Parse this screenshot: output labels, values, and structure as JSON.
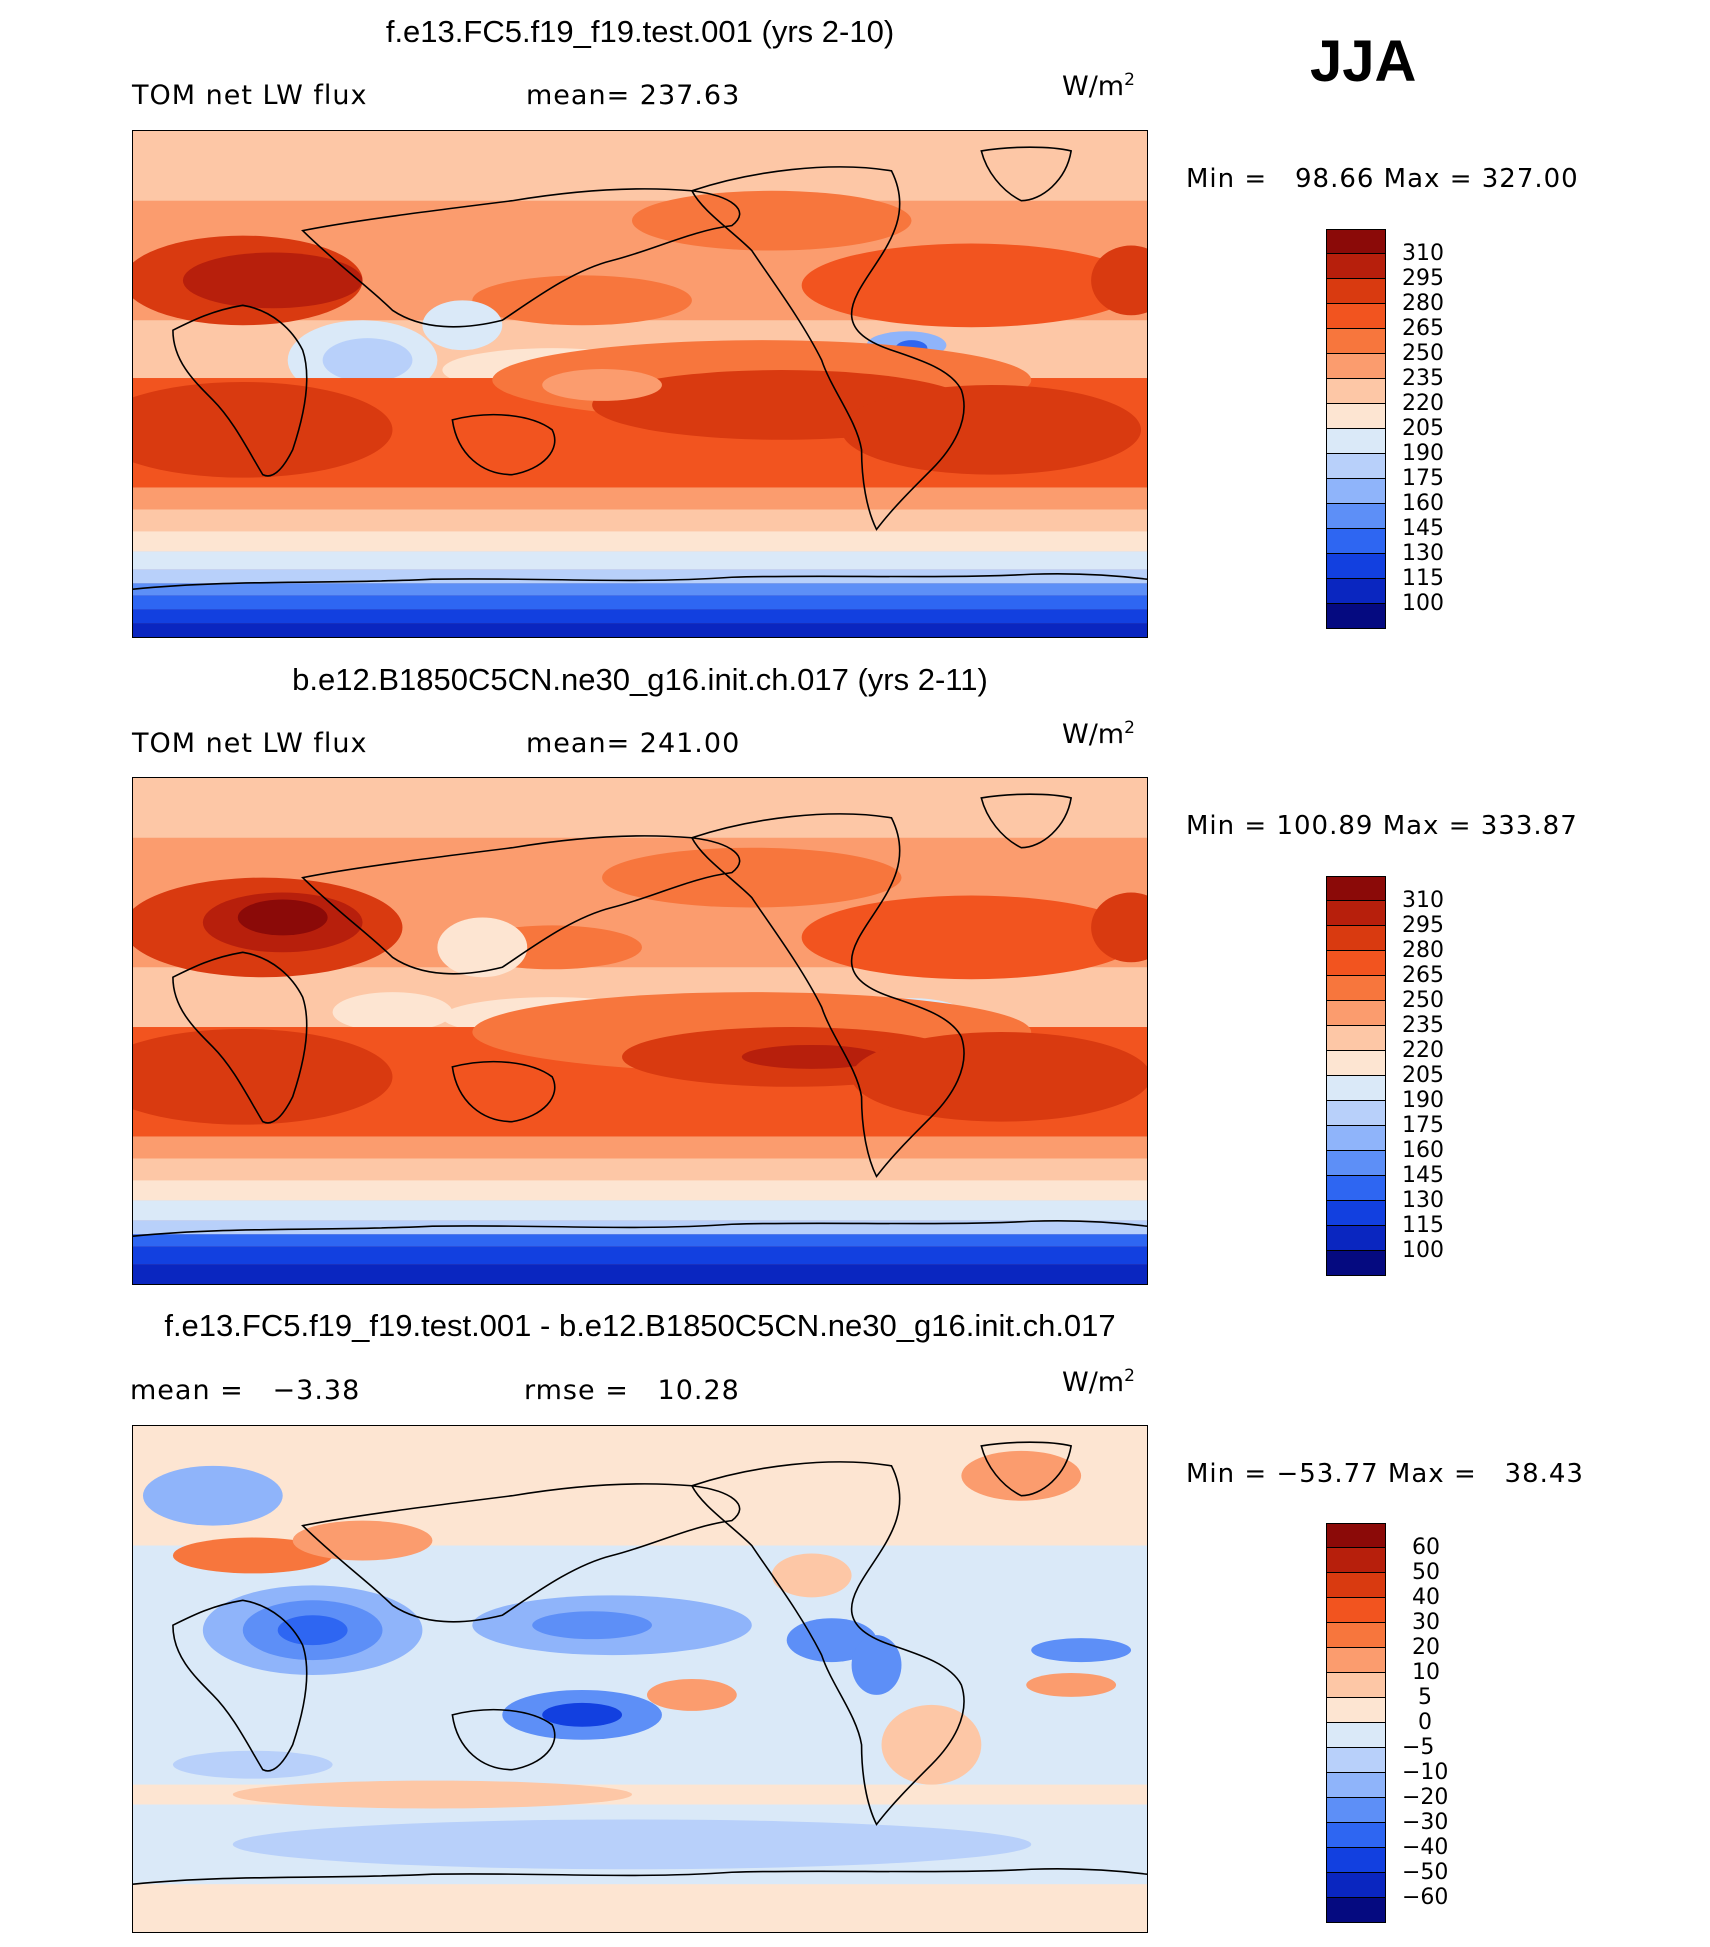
{
  "season": "JJA",
  "panels": [
    {
      "title": "f.e13.FC5.f19_f19.test.001 (yrs 2-10)",
      "left_label": "TOM net LW flux",
      "center_label": "mean= 237.63",
      "units_base": "W/m",
      "units_sup": "2",
      "minmax": "Min =   98.66 Max = 327.00",
      "colorbar": {
        "labels": [
          "310",
          "295",
          "280",
          "265",
          "250",
          "235",
          "220",
          "205",
          "190",
          "175",
          "160",
          "145",
          "130",
          "115",
          "100"
        ],
        "colors": [
          "#8b0a08",
          "#b71f0c",
          "#d93a10",
          "#f2541f",
          "#f7763d",
          "#fb9c6e",
          "#fdc7a6",
          "#fde5d2",
          "#dae9f8",
          "#b8d0fa",
          "#8fb4fa",
          "#5d8ff7",
          "#2e66f2",
          "#1240e0",
          "#0a26c0",
          "#050a80"
        ]
      }
    },
    {
      "title": "b.e12.B1850C5CN.ne30_g16.init.ch.017 (yrs 2-11)",
      "left_label": "TOM net LW flux",
      "center_label": "mean= 241.00",
      "units_base": "W/m",
      "units_sup": "2",
      "minmax": "Min = 100.89 Max = 333.87",
      "colorbar": {
        "labels": [
          "310",
          "295",
          "280",
          "265",
          "250",
          "235",
          "220",
          "205",
          "190",
          "175",
          "160",
          "145",
          "130",
          "115",
          "100"
        ],
        "colors": [
          "#8b0a08",
          "#b71f0c",
          "#d93a10",
          "#f2541f",
          "#f7763d",
          "#fb9c6e",
          "#fdc7a6",
          "#fde5d2",
          "#dae9f8",
          "#b8d0fa",
          "#8fb4fa",
          "#5d8ff7",
          "#2e66f2",
          "#1240e0",
          "#0a26c0",
          "#050a80"
        ]
      }
    },
    {
      "title": "f.e13.FC5.f19_f19.test.001 - b.e12.B1850C5CN.ne30_g16.init.ch.017",
      "left_label": "mean =   −3.38",
      "center_label": "rmse =   10.28",
      "units_base": "W/m",
      "units_sup": "2",
      "minmax": "Min = −53.77 Max =   38.43",
      "colorbar": {
        "labels": [
          "60",
          "50",
          "40",
          "30",
          "20",
          "10",
          "5",
          "0",
          "−5",
          "−10",
          "−20",
          "−30",
          "−40",
          "−50",
          "−60"
        ],
        "colors": [
          "#8b0a08",
          "#b71f0c",
          "#d93a10",
          "#f2541f",
          "#f7763d",
          "#fb9c6e",
          "#fdc7a6",
          "#fde5d2",
          "#dae9f8",
          "#b8d0fa",
          "#8fb4fa",
          "#5d8ff7",
          "#2e66f2",
          "#1240e0",
          "#0a26c0",
          "#050a80"
        ]
      }
    }
  ]
}
